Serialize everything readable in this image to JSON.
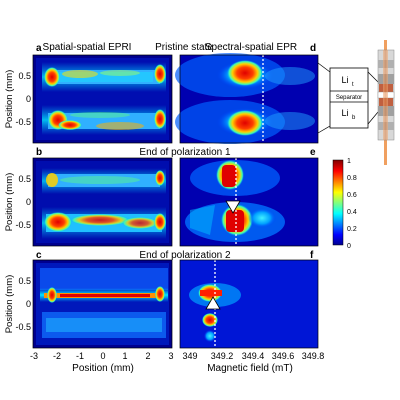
{
  "headers": {
    "left": "Spatial-spatial EPRI",
    "center": "Pristine state",
    "right": "Spectral-spatial EPR"
  },
  "panel_letters": [
    "a",
    "b",
    "c",
    "d",
    "e",
    "f"
  ],
  "row_titles": [
    "End of polarization 1",
    "End of polarization 2"
  ],
  "axes": {
    "ylabel": "Position (mm)",
    "xlabel_left": "Position (mm)",
    "xlabel_right": "Magnetic field (mT)",
    "y_ticks": [
      "0.5",
      "0",
      "-0.5"
    ],
    "x_ticks_left": [
      "-3",
      "-2",
      "-1",
      "0",
      "1",
      "2",
      "3"
    ],
    "x_ticks_right": [
      "349",
      "349.2",
      "349.4",
      "349.6",
      "349.8"
    ]
  },
  "colorbar": {
    "ticks": [
      "1",
      "0.8",
      "0.6",
      "0.4",
      "0.2",
      "0"
    ],
    "range": [
      0,
      1
    ],
    "colormap": "jet"
  },
  "schematic": {
    "top_label": "Li",
    "top_sub": "t",
    "middle_label": "Separator",
    "bottom_label": "Li",
    "bottom_sub": "b"
  },
  "colors": {
    "bg": "#00008f",
    "low": "#0050ff",
    "mid": "#00e0ff",
    "hi": "#ffe000",
    "max": "#e00000"
  }
}
